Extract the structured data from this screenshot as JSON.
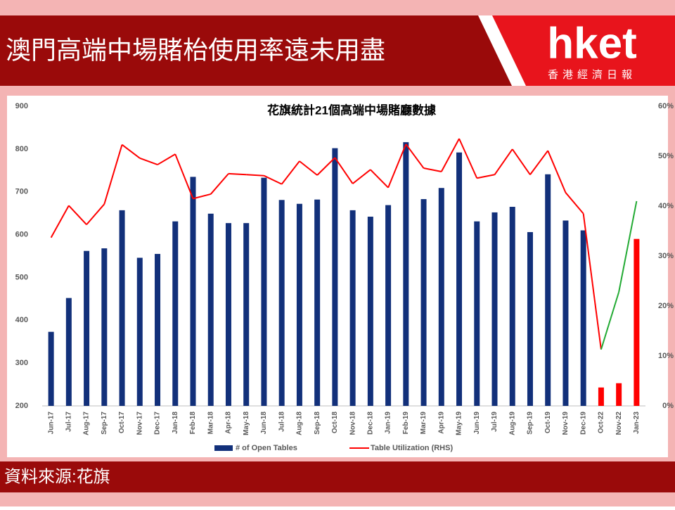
{
  "header": {
    "title": "澳門高端中場賭枱使用率遠未用盡"
  },
  "logo": {
    "name": "hket",
    "tagline": "香港經濟日報"
  },
  "footer": {
    "source": "資料來源:花旗"
  },
  "chart_data": {
    "type": "bar_line",
    "title": "花旗統計21個高端中場賭廳數據",
    "categories": [
      "Jun-17",
      "Jul-17",
      "Aug-17",
      "Sep-17",
      "Oct-17",
      "Nov-17",
      "Dec-17",
      "Jan-18",
      "Feb-18",
      "Mar-18",
      "Apr-18",
      "May-18",
      "Jun-18",
      "Jul-18",
      "Aug-18",
      "Sep-18",
      "Oct-18",
      "Nov-18",
      "Dec-18",
      "Jan-19",
      "Feb-19",
      "Mar-19",
      "Apr-19",
      "May-19",
      "Jun-19",
      "Jul-19",
      "Aug-19",
      "Sep-19",
      "Oct-19",
      "Nov-19",
      "Dec-19",
      "Oct-22",
      "Nov-22",
      "Jan-23"
    ],
    "series": [
      {
        "name": "# of Open Tables",
        "type": "bar",
        "color": "#12307a",
        "colors": [
          "#12307a",
          "#12307a",
          "#12307a",
          "#12307a",
          "#12307a",
          "#12307a",
          "#12307a",
          "#12307a",
          "#12307a",
          "#12307a",
          "#12307a",
          "#12307a",
          "#12307a",
          "#12307a",
          "#12307a",
          "#12307a",
          "#12307a",
          "#12307a",
          "#12307a",
          "#12307a",
          "#12307a",
          "#12307a",
          "#12307a",
          "#12307a",
          "#12307a",
          "#12307a",
          "#12307a",
          "#12307a",
          "#12307a",
          "#12307a",
          "#12307a",
          "#ff0000",
          "#ff0000",
          "#ff0000"
        ],
        "values": [
          373,
          452,
          562,
          568,
          657,
          546,
          555,
          631,
          735,
          649,
          627,
          627,
          733,
          681,
          672,
          682,
          802,
          657,
          642,
          669,
          816,
          683,
          709,
          792,
          631,
          652,
          665,
          606,
          741,
          633,
          610,
          243,
          253,
          590
        ]
      },
      {
        "name": "Table Utilization (RHS)",
        "type": "line",
        "axis": "y2",
        "color": "#ff0000",
        "colors": [
          "#ff0000",
          "#ff0000",
          "#ff0000",
          "#ff0000",
          "#ff0000",
          "#ff0000",
          "#ff0000",
          "#ff0000",
          "#ff0000",
          "#ff0000",
          "#ff0000",
          "#ff0000",
          "#ff0000",
          "#ff0000",
          "#ff0000",
          "#ff0000",
          "#ff0000",
          "#ff0000",
          "#ff0000",
          "#ff0000",
          "#ff0000",
          "#ff0000",
          "#ff0000",
          "#ff0000",
          "#ff0000",
          "#ff0000",
          "#ff0000",
          "#ff0000",
          "#ff0000",
          "#ff0000",
          "#ff0000",
          "#ff0000",
          "#22aa33",
          "#22aa33"
        ],
        "values": [
          33.7,
          40.1,
          36.3,
          40.4,
          52.3,
          49.6,
          48.3,
          50.4,
          41.5,
          42.4,
          46.5,
          46.3,
          46.1,
          44.4,
          49.0,
          46.2,
          49.7,
          44.5,
          47.3,
          43.7,
          52.4,
          47.6,
          46.9,
          53.5,
          45.6,
          46.3,
          51.4,
          46.3,
          51.1,
          42.7,
          38.5,
          11.3,
          22.8,
          41.0
        ]
      }
    ],
    "ylim": [
      200,
      900
    ],
    "yticks": [
      200,
      300,
      400,
      500,
      600,
      700,
      800,
      900
    ],
    "y2lim": [
      0,
      60
    ],
    "y2ticks": [
      {
        "value": 0,
        "label": "0%"
      },
      {
        "value": 10,
        "label": "10%"
      },
      {
        "value": 20,
        "label": "20%"
      },
      {
        "value": 30,
        "label": "30%"
      },
      {
        "value": 40,
        "label": "40%"
      },
      {
        "value": 50,
        "label": "50%"
      },
      {
        "value": 60,
        "label": "60%"
      }
    ],
    "legend": "bottom"
  }
}
